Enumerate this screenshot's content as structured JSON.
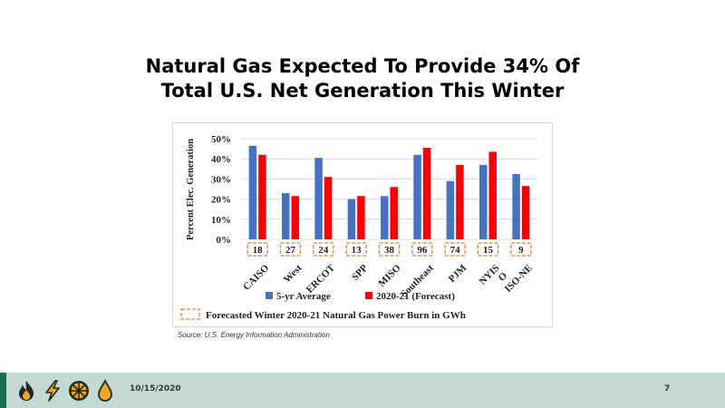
{
  "slide": {
    "title_line1": "Natural Gas Expected To Provide 34% Of",
    "title_line2": "Total U.S. Net Generation This Winter",
    "source": "Source: U.S. Energy Information Administration",
    "date": "10/15/2020",
    "page_number": "7"
  },
  "footer_icons": [
    "flame-icon",
    "lightning-icon",
    "wheel-icon",
    "droplet-icon"
  ],
  "colors": {
    "series_5yr": "#4472c4",
    "series_forecast": "#ff0000",
    "burn_box": "#ed7d31",
    "footer_bg": "#c5d9d3",
    "footer_accent": "#1e6b55"
  },
  "chart_data": {
    "type": "bar",
    "ylabel": "Percent Elec. Generation",
    "ylim": [
      0,
      50
    ],
    "yticks": [
      "0%",
      "10%",
      "20%",
      "30%",
      "40%",
      "50%"
    ],
    "grid": true,
    "categories": [
      "CAISO",
      "West",
      "ERCOT",
      "SPP",
      "MISO",
      "Southeast",
      "PJM",
      "NYIS\nO",
      "ISO-NE"
    ],
    "series": [
      {
        "name": "5-yr Average",
        "values": [
          46.5,
          23,
          40.5,
          20,
          21.5,
          42,
          29,
          37,
          32.5
        ]
      },
      {
        "name": "2020-21 (Forecast)",
        "values": [
          42,
          21.5,
          31,
          21.5,
          26,
          45.5,
          37,
          43.5,
          26.5
        ]
      }
    ],
    "burn_gwh": [
      18,
      27,
      24,
      13,
      38,
      96,
      74,
      15,
      9
    ],
    "burn_legend": "Forecasted Winter 2020-21 Natural Gas Power Burn in GWh"
  }
}
